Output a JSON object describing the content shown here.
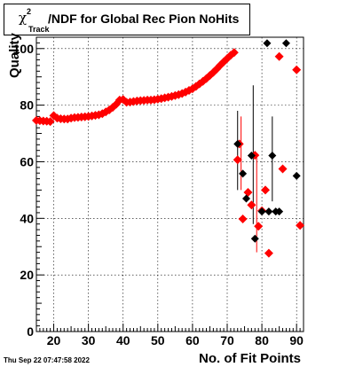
{
  "title": {
    "prefix": "χ",
    "superscript": "2",
    "subscript": "Track",
    "text": "/NDF for Global Rec Pion NoHits"
  },
  "footer": {
    "timestamp": "Thu Sep 22 07:47:58 2022"
  },
  "chart_data": {
    "type": "scatter",
    "xlabel": "No. of Fit Points",
    "ylabel": "Quality",
    "xlim": [
      15,
      92
    ],
    "ylim": [
      0,
      104
    ],
    "xticks": [
      20,
      30,
      40,
      50,
      60,
      70,
      80,
      90
    ],
    "yticks": [
      0,
      20,
      40,
      60,
      80,
      100
    ],
    "grid": true,
    "colors": {
      "red": "#ff0000",
      "black": "#000000"
    },
    "series": [
      {
        "color": "red",
        "points": [
          [
            15,
            74.6
          ],
          [
            16,
            74.5
          ],
          [
            17,
            74.4
          ],
          [
            18,
            74.3
          ],
          [
            19,
            74.2
          ],
          [
            20,
            76.3
          ],
          [
            21,
            75.4
          ],
          [
            22,
            75.2
          ],
          [
            23,
            75.1
          ],
          [
            24,
            75.1
          ],
          [
            25,
            75.4
          ],
          [
            26,
            75.6
          ],
          [
            27,
            75.7
          ],
          [
            28,
            75.8
          ],
          [
            29,
            75.9
          ],
          [
            30,
            76.0
          ],
          [
            31,
            76.2
          ],
          [
            32,
            76.4
          ],
          [
            33,
            76.6
          ],
          [
            34,
            77.0
          ],
          [
            35,
            77.6
          ],
          [
            36,
            78.3
          ],
          [
            37,
            79.2
          ],
          [
            38,
            80.3
          ],
          [
            39,
            81.8
          ],
          [
            40,
            82.0
          ],
          [
            41,
            81.0
          ],
          [
            42,
            81.1
          ],
          [
            43,
            81.3
          ],
          [
            44,
            81.5
          ],
          [
            45,
            81.6
          ],
          [
            46,
            81.7
          ],
          [
            47,
            81.8
          ],
          [
            48,
            81.8
          ],
          [
            49,
            81.9
          ],
          [
            50,
            82.1
          ],
          [
            51,
            82.3
          ],
          [
            52,
            82.6
          ],
          [
            53,
            82.8
          ],
          [
            54,
            83.1
          ],
          [
            55,
            83.4
          ],
          [
            56,
            83.7
          ],
          [
            57,
            84.1
          ],
          [
            58,
            84.6
          ],
          [
            59,
            85.2
          ],
          [
            60,
            85.8
          ],
          [
            61,
            86.6
          ],
          [
            62,
            87.5
          ],
          [
            63,
            88.4
          ],
          [
            64,
            89.4
          ],
          [
            65,
            90.5
          ],
          [
            66,
            91.6
          ],
          [
            67,
            92.8
          ],
          [
            68,
            94.1
          ],
          [
            69,
            95.3
          ],
          [
            70,
            96.5
          ],
          [
            71,
            97.6
          ],
          [
            72,
            98.6
          ],
          [
            73,
            60.7
          ],
          [
            73.5,
            66.3
          ],
          [
            74.5,
            39.8
          ],
          [
            76,
            49.2
          ],
          [
            77,
            44.7
          ],
          [
            78,
            62.3
          ],
          [
            79,
            37.2
          ],
          [
            80,
            42.7
          ],
          [
            81,
            50.0
          ],
          [
            82,
            27.7
          ],
          [
            85,
            97.2
          ],
          [
            86,
            57.5
          ],
          [
            90,
            92.5
          ],
          [
            91,
            37.5
          ]
        ]
      },
      {
        "color": "black",
        "points": [
          [
            73,
            66.3
          ],
          [
            74.5,
            55.8
          ],
          [
            75.5,
            47.0
          ],
          [
            77,
            62.2
          ],
          [
            78,
            32.8
          ],
          [
            80,
            42.4
          ],
          [
            81.5,
            101.9
          ],
          [
            82,
            42.4
          ],
          [
            83,
            62.2
          ],
          [
            84,
            42.4
          ],
          [
            85,
            42.4
          ],
          [
            87,
            101.9
          ],
          [
            90,
            55.0
          ]
        ]
      }
    ],
    "error_bars": [
      {
        "x": 73,
        "low": 50,
        "high": 78,
        "color": "black"
      },
      {
        "x": 74,
        "low": 50,
        "high": 76,
        "color": "red"
      },
      {
        "x": 77.5,
        "low": 38,
        "high": 87,
        "color": "black"
      },
      {
        "x": 78.5,
        "low": 28,
        "high": 62,
        "color": "red"
      },
      {
        "x": 83,
        "low": 46,
        "high": 76,
        "color": "black"
      }
    ]
  }
}
